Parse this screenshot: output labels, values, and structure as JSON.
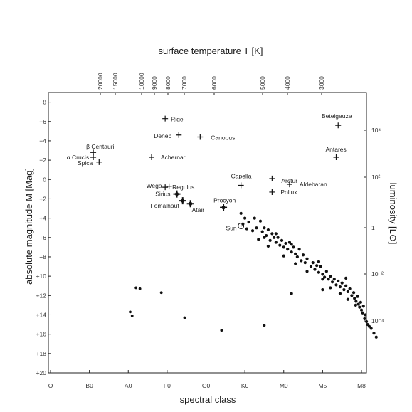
{
  "chart_data": {
    "type": "scatter",
    "title": "",
    "xlabel": "spectral class",
    "ylabel": "absolute magnitude M [Mag]",
    "top_axis_label": "surface temperature T [K]",
    "right_axis_label": "luminosity [L⊙]",
    "x_ticks": [
      "O",
      "B0",
      "A0",
      "F0",
      "G0",
      "K0",
      "M0",
      "M5",
      "M8"
    ],
    "y_ticks": [
      "−8",
      "−6",
      "−4",
      "−2",
      "0",
      "+2",
      "+4",
      "+6",
      "+8",
      "+10",
      "+12",
      "+14",
      "+16",
      "+18",
      "+20"
    ],
    "y_range": [
      -9,
      20
    ],
    "top_ticks": [
      "20000",
      "15000",
      "10000",
      "9000",
      "8000",
      "7000",
      "6000",
      "5000",
      "4000",
      "3000"
    ],
    "right_ticks": [
      "10⁴",
      "10²",
      "1",
      "10⁻²",
      "10⁻⁴"
    ],
    "named_stars": [
      {
        "name": "Rigel",
        "x": 2.95,
        "y": -6.3
      },
      {
        "name": "Beteigeuze",
        "x": 7.4,
        "y": -5.6
      },
      {
        "name": "Deneb",
        "x": 3.3,
        "y": -4.6
      },
      {
        "name": "Canopus",
        "x": 3.85,
        "y": -4.4
      },
      {
        "name": "β Centauri",
        "x": 1.1,
        "y": -2.8
      },
      {
        "name": "α Crucis",
        "x": 1.1,
        "y": -2.3
      },
      {
        "name": "Achernar",
        "x": 2.6,
        "y": -2.3
      },
      {
        "name": "Spica",
        "x": 1.25,
        "y": -1.8
      },
      {
        "name": "Antares",
        "x": 7.35,
        "y": -2.3
      },
      {
        "name": "Regulus",
        "x": 2.95,
        "y": 0.8
      },
      {
        "name": "Capella",
        "x": 4.9,
        "y": 0.6
      },
      {
        "name": "Aldebaran",
        "x": 6.15,
        "y": 0.5
      },
      {
        "name": "Arctur",
        "x": 5.7,
        "y": -0.1
      },
      {
        "name": "Pollux",
        "x": 5.7,
        "y": 1.3
      },
      {
        "name": "Wega",
        "x": 3.05,
        "y": 0.7
      },
      {
        "name": "Sirius",
        "x": 3.25,
        "y": 1.5
      },
      {
        "name": "Fomalhaut",
        "x": 3.4,
        "y": 2.2
      },
      {
        "name": "Atair",
        "x": 3.6,
        "y": 2.5
      },
      {
        "name": "Procyon",
        "x": 4.45,
        "y": 2.9
      },
      {
        "name": "Sun",
        "x": 4.9,
        "y": 4.8
      }
    ],
    "main_sequence_points": [
      [
        4.9,
        3.5
      ],
      [
        5.0,
        4.0
      ],
      [
        4.95,
        4.6
      ],
      [
        5.05,
        5.1
      ],
      [
        5.1,
        4.4
      ],
      [
        5.25,
        4.0
      ],
      [
        5.3,
        5.0
      ],
      [
        5.2,
        5.3
      ],
      [
        5.4,
        4.3
      ],
      [
        5.45,
        5.4
      ],
      [
        5.5,
        5.0
      ],
      [
        5.55,
        5.8
      ],
      [
        5.5,
        6.0
      ],
      [
        5.6,
        5.2
      ],
      [
        5.65,
        6.3
      ],
      [
        5.7,
        5.6
      ],
      [
        5.75,
        6.0
      ],
      [
        5.8,
        6.5
      ],
      [
        5.85,
        6.0
      ],
      [
        5.9,
        6.8
      ],
      [
        5.95,
        6.3
      ],
      [
        6.0,
        7.0
      ],
      [
        6.05,
        6.6
      ],
      [
        6.1,
        7.2
      ],
      [
        6.15,
        6.5
      ],
      [
        6.2,
        7.5
      ],
      [
        6.25,
        7.0
      ],
      [
        6.3,
        7.7
      ],
      [
        6.35,
        8.0
      ],
      [
        6.4,
        7.2
      ],
      [
        6.45,
        8.4
      ],
      [
        6.5,
        7.8
      ],
      [
        6.55,
        8.6
      ],
      [
        6.6,
        8.2
      ],
      [
        6.7,
        9.0
      ],
      [
        6.75,
        8.6
      ],
      [
        6.8,
        9.3
      ],
      [
        6.85,
        8.9
      ],
      [
        6.9,
        9.6
      ],
      [
        6.95,
        9.0
      ],
      [
        7.0,
        9.8
      ],
      [
        7.05,
        10.1
      ],
      [
        7.1,
        9.5
      ],
      [
        7.15,
        10.3
      ],
      [
        7.2,
        10.0
      ],
      [
        7.25,
        10.6
      ],
      [
        7.3,
        10.3
      ],
      [
        7.35,
        10.9
      ],
      [
        7.4,
        10.5
      ],
      [
        7.45,
        11.1
      ],
      [
        7.5,
        10.7
      ],
      [
        7.55,
        11.4
      ],
      [
        7.6,
        11.0
      ],
      [
        7.65,
        11.6
      ],
      [
        7.7,
        11.3
      ],
      [
        7.75,
        12.0
      ],
      [
        7.8,
        11.7
      ],
      [
        7.82,
        12.3
      ],
      [
        7.86,
        12.6
      ],
      [
        7.9,
        12.1
      ],
      [
        7.92,
        12.9
      ],
      [
        7.95,
        13.2
      ],
      [
        7.98,
        12.7
      ],
      [
        8.0,
        13.5
      ],
      [
        8.03,
        13.8
      ],
      [
        8.05,
        13.1
      ],
      [
        8.08,
        14.4
      ],
      [
        8.1,
        14.0
      ],
      [
        8.13,
        14.7
      ],
      [
        8.16,
        15.0
      ],
      [
        8.2,
        15.2
      ],
      [
        8.25,
        15.4
      ],
      [
        8.32,
        15.9
      ],
      [
        8.38,
        16.3
      ],
      [
        5.35,
        6.2
      ],
      [
        5.6,
        6.9
      ],
      [
        6.0,
        7.9
      ],
      [
        6.3,
        8.7
      ],
      [
        6.6,
        9.5
      ],
      [
        7.0,
        10.3
      ],
      [
        7.2,
        11.2
      ],
      [
        7.45,
        11.8
      ],
      [
        7.65,
        12.4
      ],
      [
        7.85,
        13.0
      ],
      [
        5.8,
        5.6
      ],
      [
        6.2,
        6.7
      ],
      [
        6.9,
        8.5
      ],
      [
        7.6,
        10.2
      ],
      [
        7.0,
        11.4
      ],
      [
        6.2,
        11.8
      ]
    ],
    "white_dwarfs": [
      [
        2.2,
        11.2
      ],
      [
        2.3,
        11.3
      ],
      [
        2.85,
        11.7
      ],
      [
        2.05,
        13.7
      ],
      [
        2.1,
        14.1
      ],
      [
        3.45,
        14.3
      ],
      [
        4.4,
        15.6
      ],
      [
        5.5,
        15.1
      ]
    ]
  }
}
